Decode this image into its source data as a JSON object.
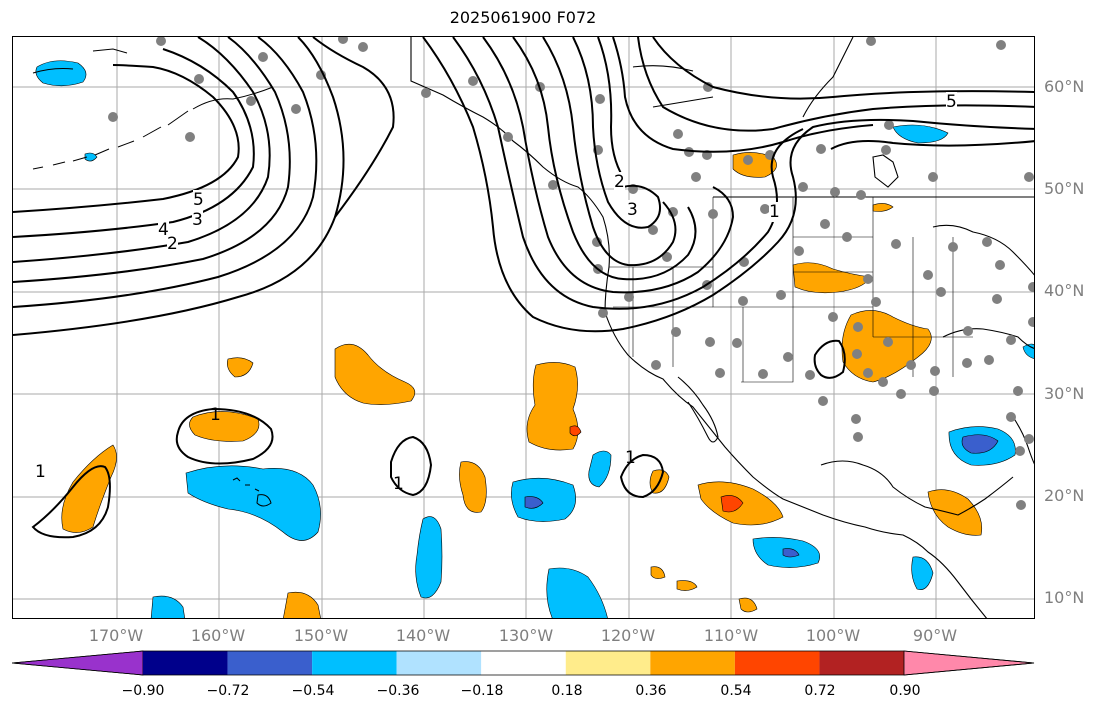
{
  "title": "2025061900 F072",
  "lat_labels": [
    "60°N",
    "50°N",
    "40°N",
    "30°N",
    "20°N",
    "10°N"
  ],
  "lon_labels": [
    "170°W",
    "160°W",
    "150°W",
    "140°W",
    "130°W",
    "120°W",
    "110°W",
    "100°W",
    "90°W"
  ],
  "contour_labels": [
    "5",
    "4",
    "3",
    "2",
    "2",
    "3",
    "1",
    "1",
    "1",
    "1",
    "1",
    "5"
  ],
  "colorbar": {
    "colors": [
      "#9932cc",
      "#00008b",
      "#3a5fcd",
      "#00bfff",
      "#b0e2ff",
      "#ffffff",
      "#ffec8b",
      "#ffa500",
      "#ff4500",
      "#b22222",
      "#ff88aa"
    ],
    "ticks": [
      "−0.90",
      "−0.72",
      "−0.54",
      "−0.36",
      "−0.18",
      "0.18",
      "0.36",
      "0.54",
      "0.72",
      "0.90"
    ]
  },
  "fill_colors": {
    "positive": "#ffa500",
    "strong_positive": "#ff4500",
    "negative": "#00bfff",
    "strong_negative": "#3a5fcd",
    "gridline": "#aaaaaa",
    "station": "#808080"
  }
}
